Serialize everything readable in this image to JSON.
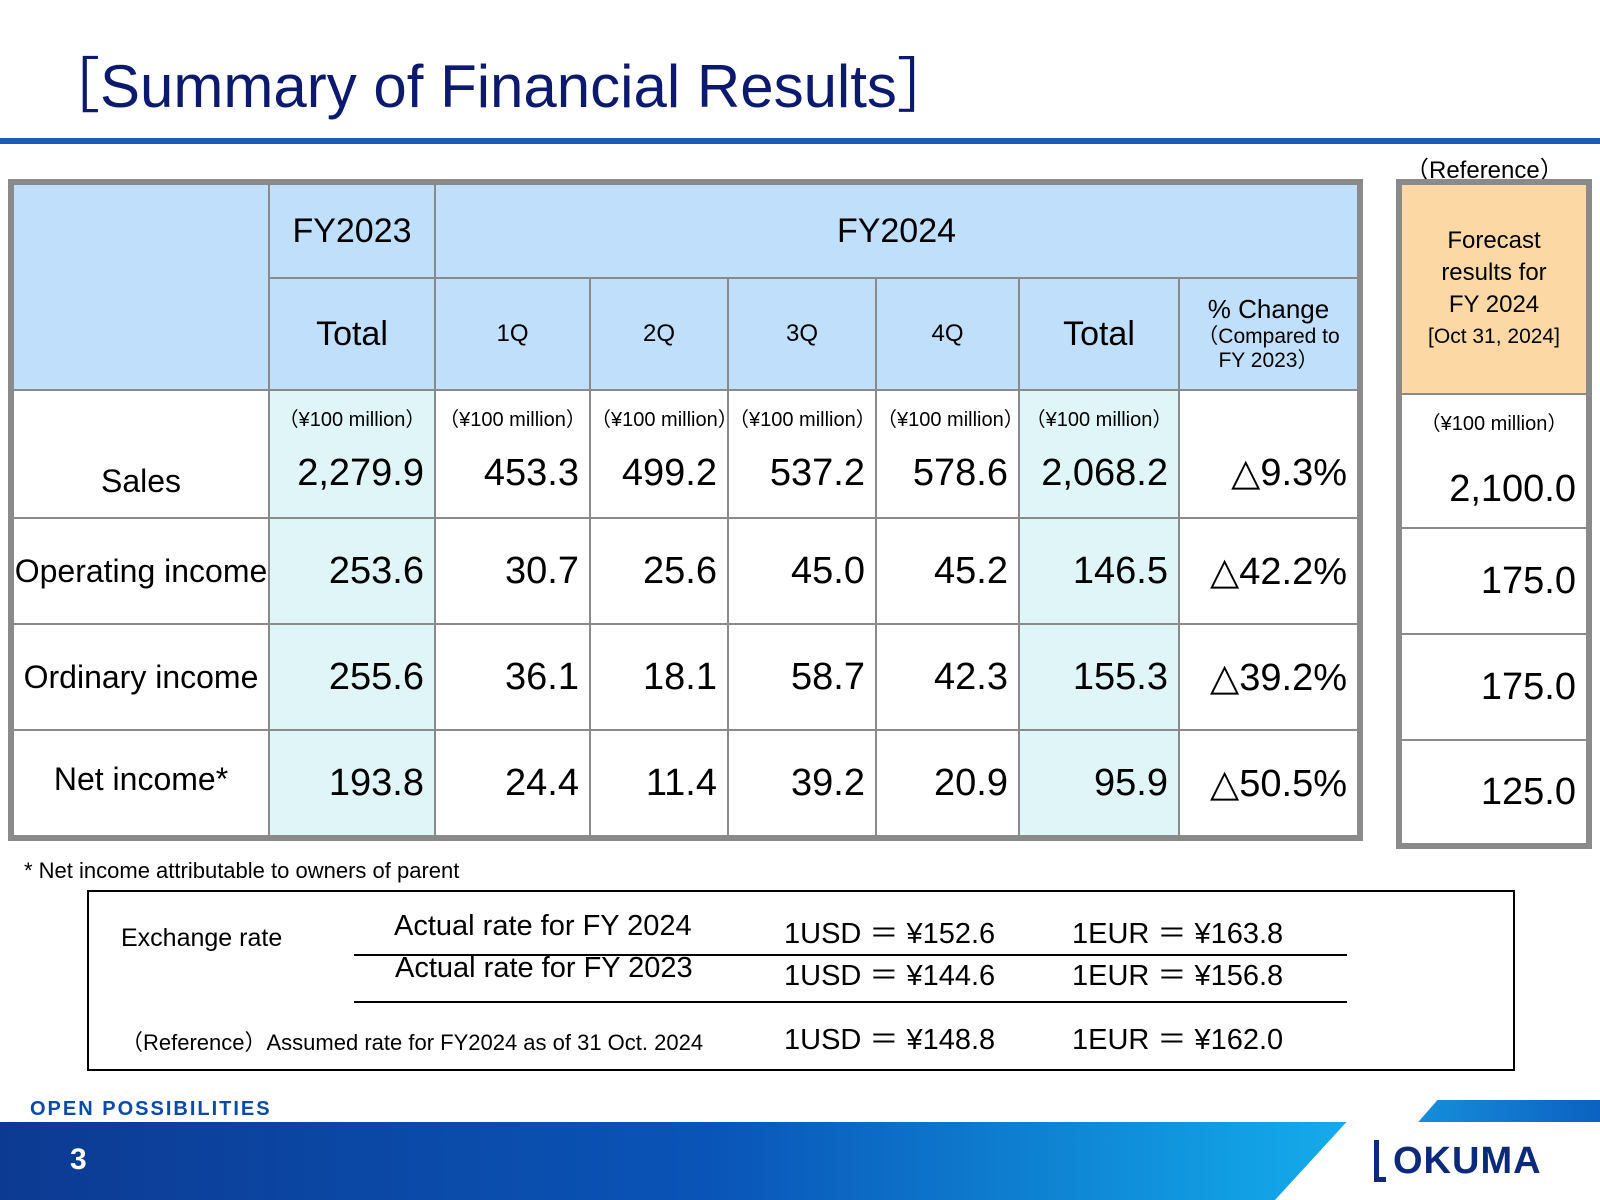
{
  "title": "［Summary of Financial Results］",
  "reference_label": "（Reference）",
  "table": {
    "fy2023": "FY2023",
    "fy2024": "FY2024",
    "total_2023": "Total",
    "q1": "1Q",
    "q2": "2Q",
    "q3": "3Q",
    "q4": "4Q",
    "total_2024": "Total",
    "pct_change": "% Change",
    "pct_sub1": "（Compared to",
    "pct_sub2": "FY 2023）",
    "unit": "（¥100 million）",
    "rows": [
      {
        "label": "Sales",
        "fy2023": "2,279.9",
        "q1": "453.3",
        "q2": "499.2",
        "q3": "537.2",
        "q4": "578.6",
        "total": "2,068.2",
        "pct": "△9.3%",
        "forecast": "2,100.0"
      },
      {
        "label": "Operating income",
        "fy2023": "253.6",
        "q1": "30.7",
        "q2": "25.6",
        "q3": "45.0",
        "q4": "45.2",
        "total": "146.5",
        "pct": "△42.2%",
        "forecast": "175.0"
      },
      {
        "label": "Ordinary income",
        "fy2023": "255.6",
        "q1": "36.1",
        "q2": "18.1",
        "q3": "58.7",
        "q4": "42.3",
        "total": "155.3",
        "pct": "△39.2%",
        "forecast": "175.0"
      },
      {
        "label": "Net income*",
        "fy2023": "193.8",
        "q1": "24.4",
        "q2": "11.4",
        "q3": "39.2",
        "q4": "20.9",
        "total": "95.9",
        "pct": "△50.5%",
        "forecast": "125.0"
      }
    ]
  },
  "forecast_header": {
    "line1": "Forecast",
    "line2": "results for",
    "line3": "FY 2024",
    "line4": "[Oct 31, 2024]"
  },
  "footnote": "* Net income attributable to owners of parent",
  "exchange": {
    "label": "Exchange rate",
    "row1": {
      "desc": "Actual rate for FY 2024",
      "usd": "1USD ＝ ¥152.6",
      "eur": "1EUR ＝ ¥163.8"
    },
    "row2": {
      "desc": "Actual rate for FY 2023",
      "usd": "1USD ＝ ¥144.6",
      "eur": "1EUR ＝ ¥156.8"
    },
    "row3": {
      "desc": "（Reference）Assumed rate for FY2024 as of 31 Oct. 2024",
      "usd": "1USD ＝ ¥148.8",
      "eur": "1EUR ＝ ¥162.0"
    }
  },
  "footer": {
    "tagline": "OPEN POSSIBILITIES",
    "page": "3",
    "logo": "OKUMA"
  },
  "colors": {
    "title": "#0b1a6e",
    "header_blue": "#bfdffb",
    "teal": "#e0f5f8",
    "forecast_orange": "#fcd9a4",
    "footer_blue": "#0a55b8"
  }
}
